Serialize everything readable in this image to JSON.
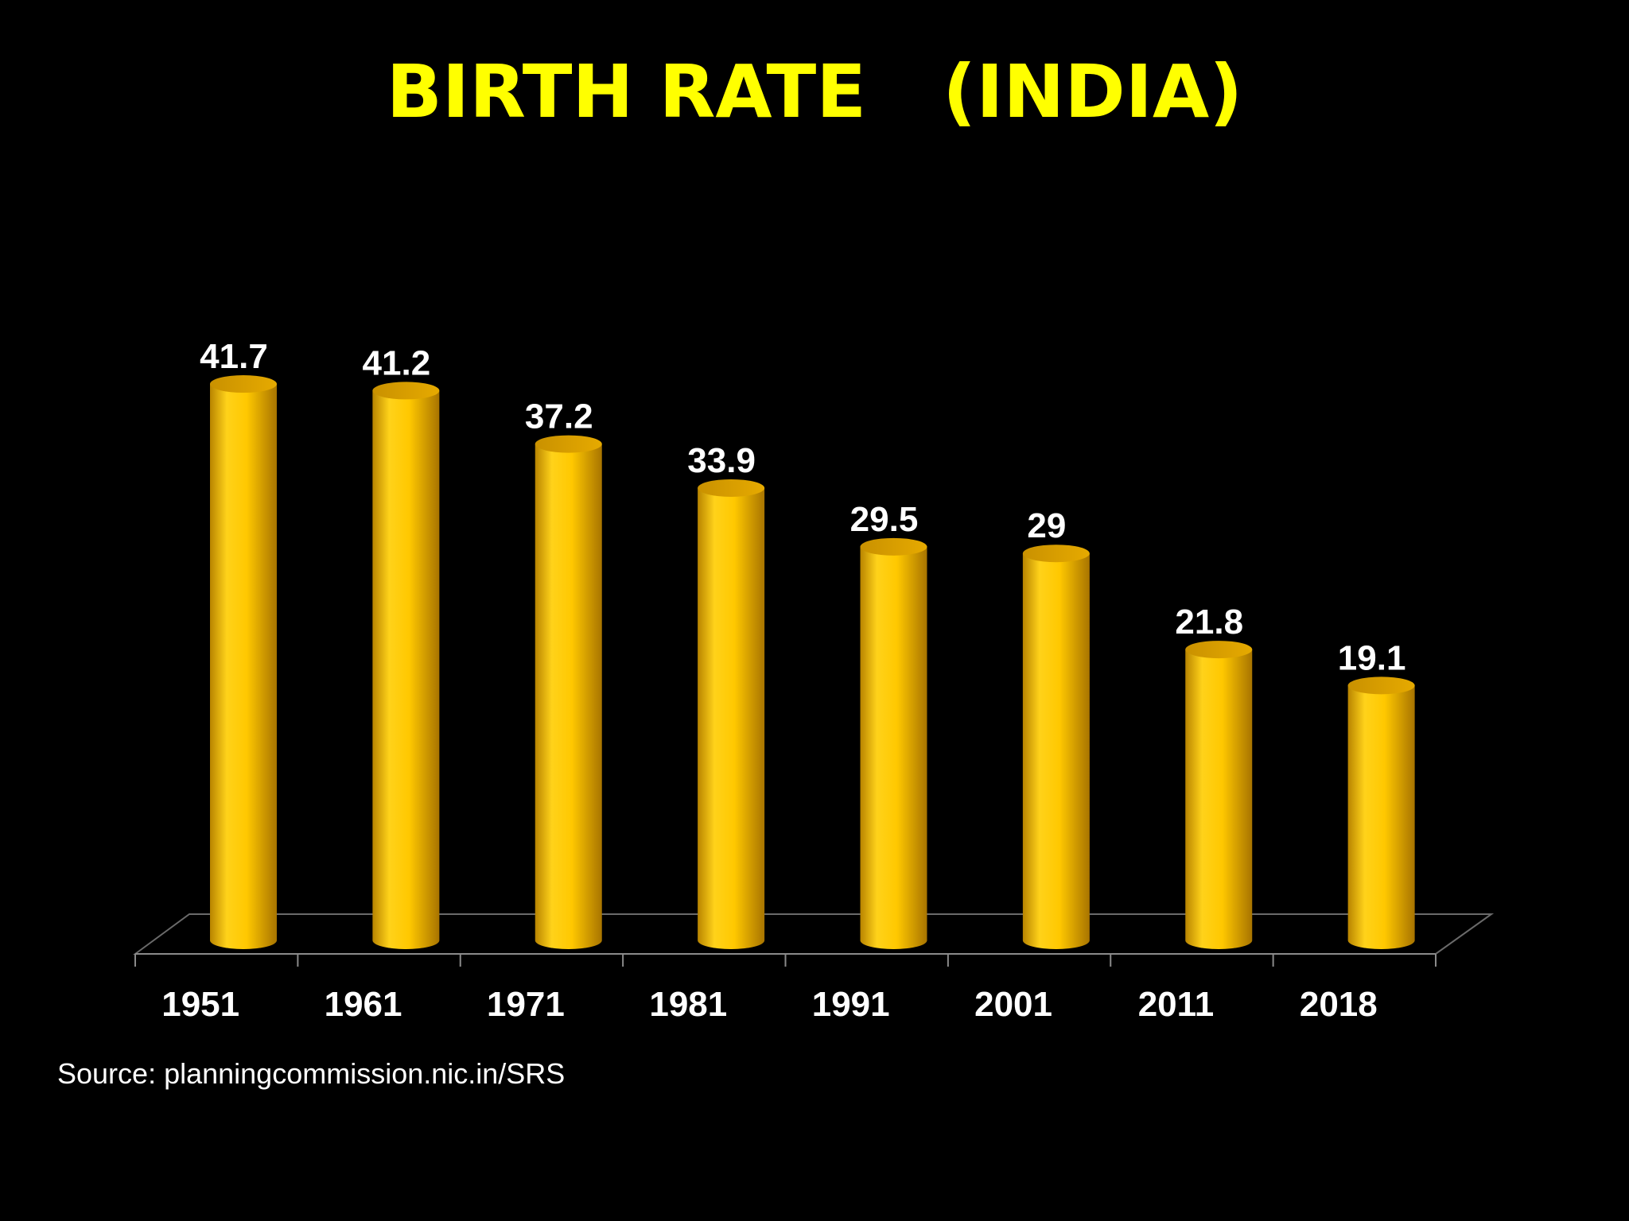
{
  "slide": {
    "title": "BIRTH RATE   (INDIA)",
    "source": "Source: planningcommission.nic.in/SRS"
  },
  "colors": {
    "background": "#000000",
    "title": "#ffff00",
    "bar": "#ffcc00",
    "text": "#ffffff"
  },
  "chart_data": {
    "type": "bar",
    "categories": [
      "1951",
      "1961",
      "1971",
      "1981",
      "1991",
      "2001",
      "2011",
      "2018"
    ],
    "values": [
      41.7,
      41.2,
      37.2,
      33.9,
      29.5,
      29,
      21.8,
      19.1
    ],
    "data_labels": [
      "41.7",
      "41.2",
      "37.2",
      "33.9",
      "29.5",
      "29",
      "21.8",
      "19.1"
    ],
    "title": "BIRTH RATE   (INDIA)",
    "xlabel": "",
    "ylabel": "",
    "ylim": [
      0,
      42
    ],
    "style": "3d-cylinder",
    "grid": false,
    "legend": "none"
  }
}
